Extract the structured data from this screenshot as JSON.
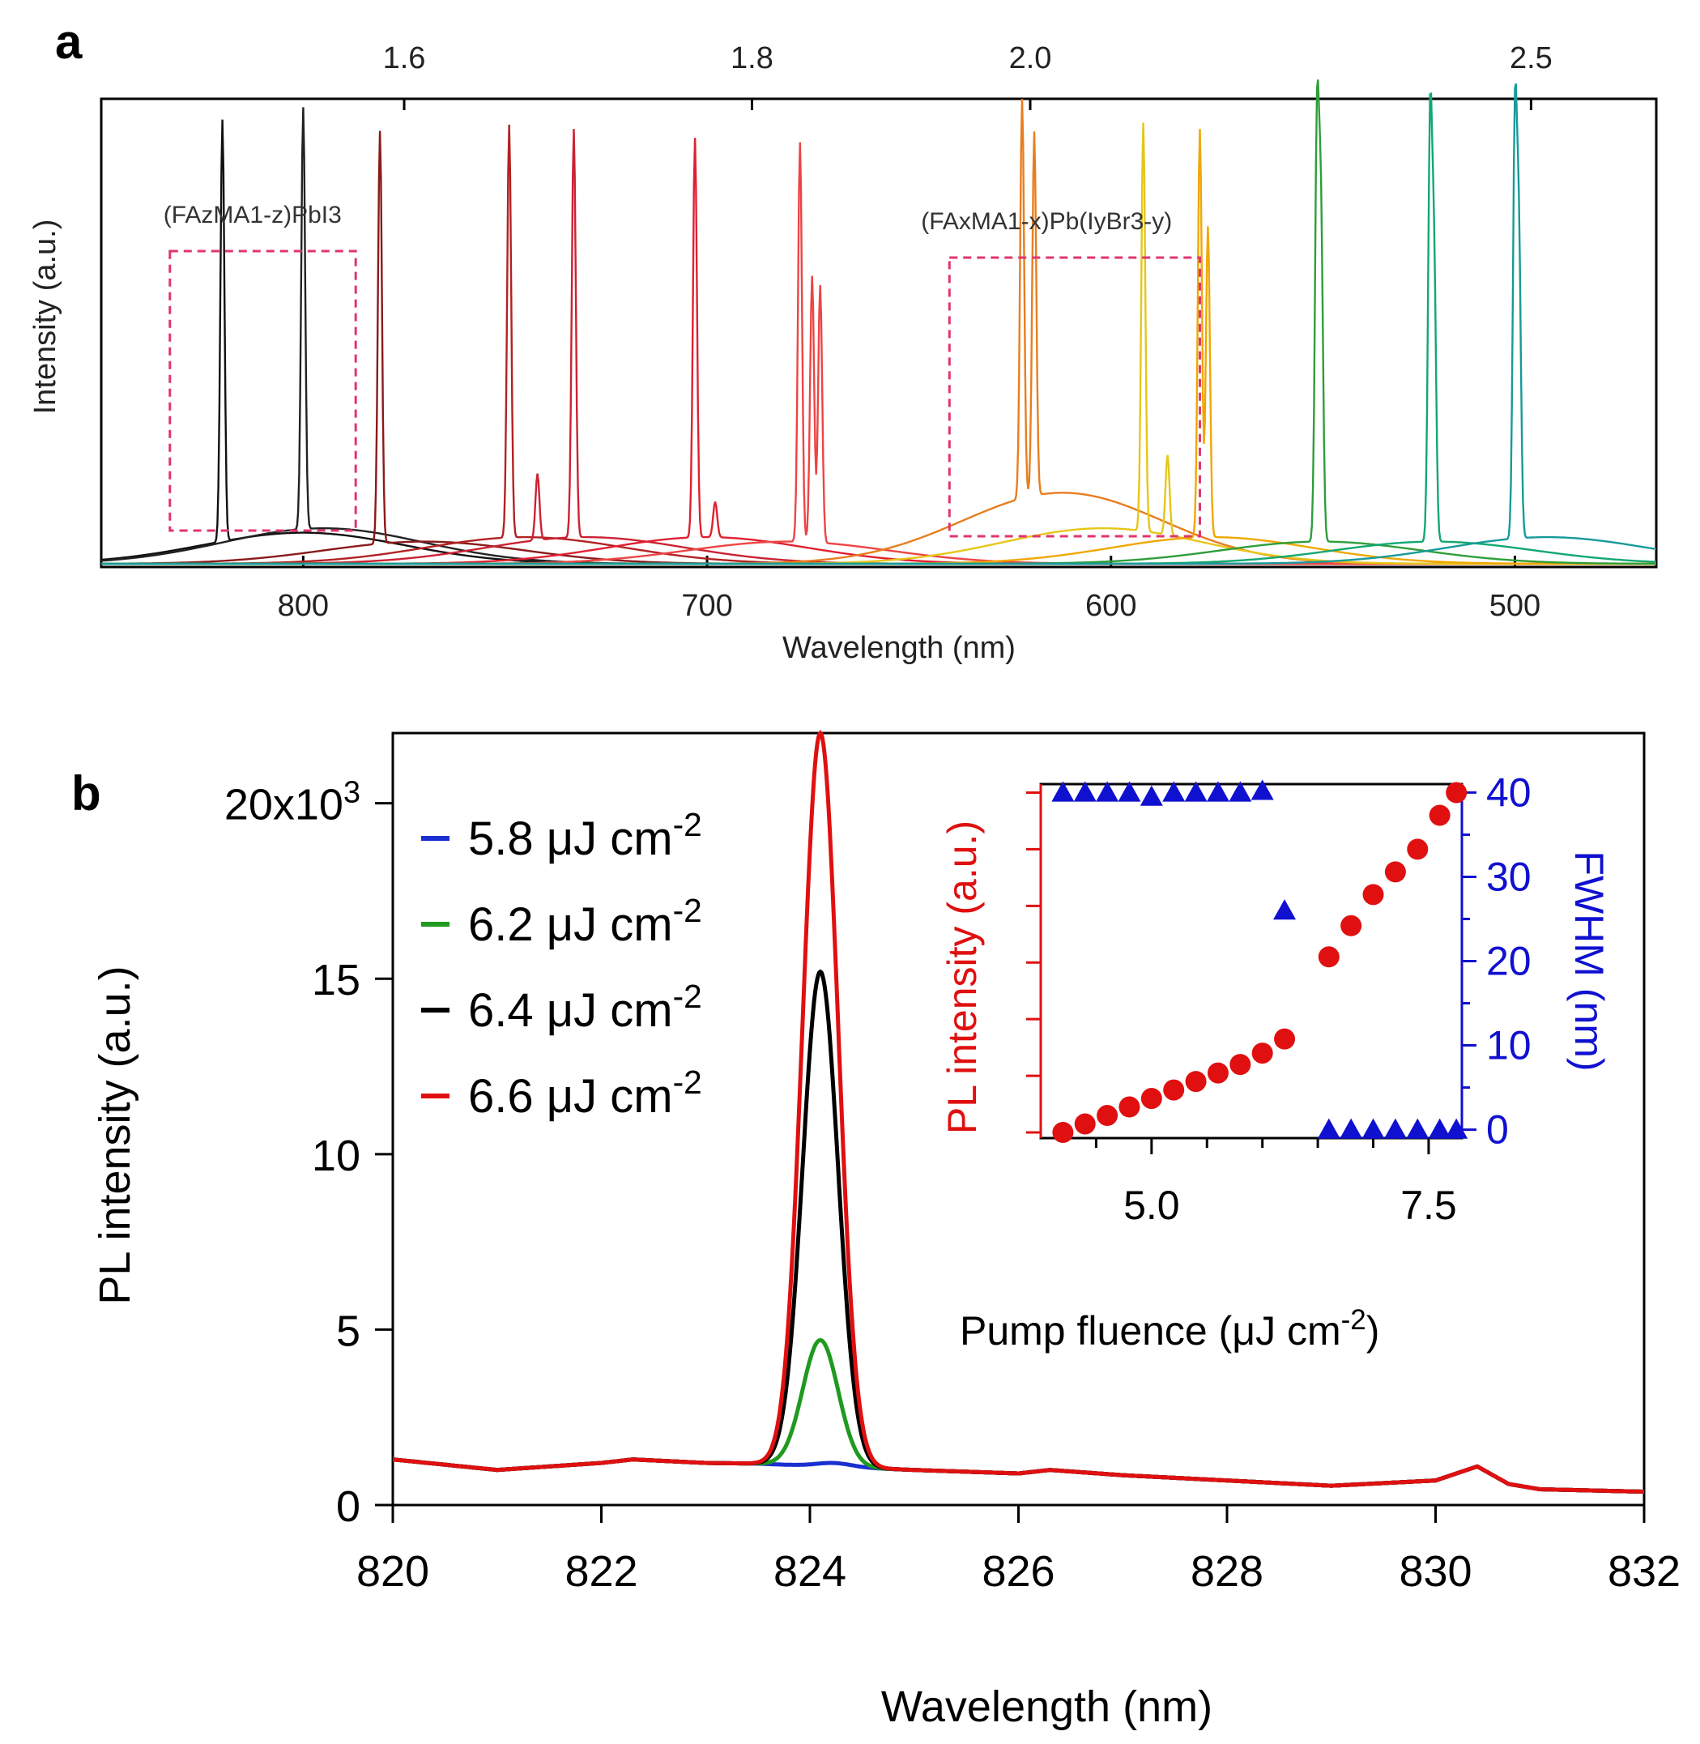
{
  "chart_data": [
    {
      "panel": "a",
      "type": "line",
      "xlabel": "Wavelength (nm)",
      "ylabel": "Intensity (a.u.)",
      "x_bottom": {
        "ticks": [
          800,
          700,
          600,
          500
        ],
        "range": [
          850,
          465
        ],
        "reversed": true
      },
      "x_top": {
        "unit": "",
        "ticks": [
          "1.6",
          "1.8",
          "2.0",
          "2.5"
        ],
        "tick_values": [
          1.6,
          1.8,
          2.0,
          2.5
        ]
      },
      "annotations": [
        {
          "text": "(FAzMA1-z)PbI3",
          "group": "(FAzMA1-z)PbI3",
          "box_nm": [
            833,
            787
          ]
        },
        {
          "text": "(FAxMA1-x)Pb(IyBr3-y)",
          "group": "(FAxMA1-x)Pb(IyBr3-y)",
          "box_nm": [
            640,
            578
          ]
        }
      ],
      "series": [
        {
          "color": "#111111",
          "peaks_nm": [
            820
          ],
          "rel_height": [
            0.95
          ],
          "bg_center": 800,
          "bg_height": 0.07
        },
        {
          "color": "#222222",
          "peaks_nm": [
            800
          ],
          "rel_height": [
            0.95
          ],
          "bg_center": 795,
          "bg_height": 0.08
        },
        {
          "color": "#8b1a1a",
          "peaks_nm": [
            781
          ],
          "rel_height": [
            0.93
          ],
          "bg_center": 770,
          "bg_height": 0.05
        },
        {
          "color": "#b22222",
          "peaks_nm": [
            749
          ],
          "rel_height": [
            0.93
          ],
          "bg_center": 745,
          "bg_height": 0.06
        },
        {
          "color": "#cc2233",
          "peaks_nm": [
            742,
            733
          ],
          "rel_height": [
            0.15,
            0.92
          ],
          "bg_center": 730,
          "bg_height": 0.06
        },
        {
          "color": "#e02030",
          "peaks_nm": [
            703,
            698
          ],
          "rel_height": [
            0.9,
            0.08
          ],
          "bg_center": 700,
          "bg_height": 0.06
        },
        {
          "color": "#ee4444",
          "peaks_nm": [
            677,
            674,
            672
          ],
          "rel_height": [
            0.9,
            0.6,
            0.58
          ],
          "bg_center": 680,
          "bg_height": 0.05
        },
        {
          "color": "#e87d1e",
          "peaks_nm": [
            622,
            619
          ],
          "rel_height": [
            0.9,
            0.82
          ],
          "bg_center": 612,
          "bg_height": 0.16
        },
        {
          "color": "#e6c619",
          "peaks_nm": [
            592,
            586
          ],
          "rel_height": [
            0.92,
            0.18
          ],
          "bg_center": 602,
          "bg_height": 0.08
        },
        {
          "color": "#f0a800",
          "peaks_nm": [
            578,
            576
          ],
          "rel_height": [
            0.92,
            0.7
          ],
          "bg_center": 575,
          "bg_height": 0.06
        },
        {
          "color": "#2e9e3a",
          "peaks_nm": [
            549,
            548
          ],
          "rel_height": [
            0.93,
            0.7
          ],
          "bg_center": 548,
          "bg_height": 0.05
        },
        {
          "color": "#12a870",
          "peaks_nm": [
            521,
            520
          ],
          "rel_height": [
            0.93,
            0.6
          ],
          "bg_center": 520,
          "bg_height": 0.05
        },
        {
          "color": "#179a9a",
          "peaks_nm": [
            500,
            499
          ],
          "rel_height": [
            0.93,
            0.65
          ],
          "bg_center": 492,
          "bg_height": 0.06
        }
      ]
    },
    {
      "panel": "b",
      "type": "line",
      "xlabel": "Wavelength (nm)",
      "ylabel": "PL intensity (a.u.)",
      "xlim": [
        820,
        832
      ],
      "ylim": [
        0,
        22000
      ],
      "xticks": [
        820,
        822,
        824,
        826,
        828,
        830,
        832
      ],
      "yticks": [
        "0",
        "5",
        "10",
        "15",
        "20x10"
      ],
      "ytick_values": [
        0,
        5000,
        10000,
        15000,
        20000
      ],
      "ytick_top_exponent": "3",
      "legend_position": "top-left",
      "series": [
        {
          "name": "5.8 μJ cm",
          "name_sup": "-2",
          "color": "#1a2fd0",
          "peak_x": 824.2,
          "peak_y": 1200
        },
        {
          "name": "6.2 μJ cm",
          "name_sup": "-2",
          "color": "#1f9a1f",
          "peak_x": 824.1,
          "peak_y": 4700
        },
        {
          "name": "6.4 μJ cm",
          "name_sup": "-2",
          "color": "#000000",
          "peak_x": 824.1,
          "peak_y": 15200
        },
        {
          "name": "6.6 μJ cm",
          "name_sup": "-2",
          "color": "#e01010",
          "peak_x": 824.1,
          "peak_y": 22000
        }
      ],
      "baseline": [
        [
          820,
          1300
        ],
        [
          821,
          1000
        ],
        [
          822,
          1200
        ],
        [
          822.3,
          1300
        ],
        [
          823,
          1200
        ],
        [
          823.5,
          1180
        ],
        [
          825,
          1000
        ],
        [
          826,
          900
        ],
        [
          826.3,
          1000
        ],
        [
          827,
          850
        ],
        [
          828,
          700
        ],
        [
          829,
          550
        ],
        [
          830,
          700
        ],
        [
          830.4,
          1100
        ],
        [
          830.7,
          600
        ],
        [
          831,
          450
        ],
        [
          832,
          380
        ]
      ],
      "inset": {
        "type": "scatter",
        "xlabel": "Pump fluence (μJ cm",
        "xlabel_sup": "-2",
        "xlabel_tail": ")",
        "ylabel_left": "PL intensity (a.u.)",
        "ylabel_right": "FWHM (nm)",
        "xlim": [
          4.0,
          7.8
        ],
        "xticks": [
          "5.0",
          "7.5"
        ],
        "xtick_values": [
          5.0,
          7.5
        ],
        "y2lim": [
          -1,
          41
        ],
        "y2ticks": [
          "0",
          "10",
          "20",
          "30",
          "40"
        ],
        "y2tick_values": [
          0,
          10,
          20,
          30,
          40
        ],
        "left_color": "#e01010",
        "right_color": "#1010d0",
        "pl_intensity": {
          "x": [
            4.2,
            4.4,
            4.6,
            4.8,
            5.0,
            5.2,
            5.4,
            5.6,
            5.8,
            6.0,
            6.2,
            6.6,
            6.8,
            7.0,
            7.2,
            7.4,
            7.6,
            7.75
          ],
          "y": [
            0.0,
            0.3,
            0.6,
            0.9,
            1.2,
            1.5,
            1.8,
            2.1,
            2.4,
            2.8,
            3.3,
            6.2,
            7.3,
            8.4,
            9.2,
            10.0,
            11.2,
            12.0
          ],
          "ylim": [
            -0.2,
            12.3
          ]
        },
        "fwhm": {
          "x": [
            4.2,
            4.4,
            4.6,
            4.8,
            5.0,
            5.2,
            5.4,
            5.6,
            5.8,
            6.0,
            6.2,
            6.6,
            6.8,
            7.0,
            7.2,
            7.4,
            7.6,
            7.75
          ],
          "y": [
            40,
            40,
            40,
            40,
            39.5,
            40,
            40,
            40,
            40,
            40.2,
            26,
            0,
            0,
            0,
            0,
            0,
            0,
            0
          ]
        }
      }
    }
  ]
}
